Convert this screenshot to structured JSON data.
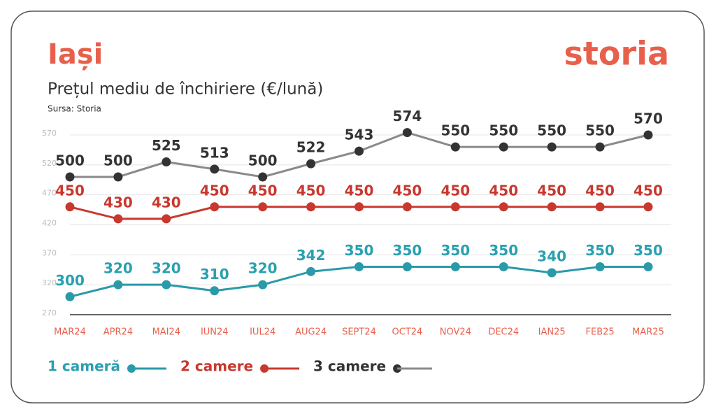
{
  "chart_data": {
    "type": "line",
    "title": "Iași",
    "subtitle": "Prețul mediu de închiriere (€/lună)",
    "source": "Sursa: Storia",
    "logo": "storia",
    "categories": [
      "MAR24",
      "APR24",
      "MAI24",
      "IUN24",
      "IUL24",
      "AUG24",
      "SEPT24",
      "OCT24",
      "NOV24",
      "DEC24",
      "IAN25",
      "FEB25",
      "MAR25"
    ],
    "ylim": [
      270,
      570
    ],
    "yticks": [
      270,
      320,
      370,
      420,
      470,
      520,
      570
    ],
    "grid": true,
    "series": [
      {
        "name": "1 cameră",
        "color": "#2a9aa8",
        "values": [
          300,
          320,
          320,
          310,
          320,
          342,
          350,
          350,
          350,
          350,
          340,
          350,
          350
        ]
      },
      {
        "name": "2 camere",
        "color": "#c8382f",
        "values": [
          450,
          430,
          430,
          450,
          450,
          450,
          450,
          450,
          450,
          450,
          450,
          450,
          450
        ]
      },
      {
        "name": "3 camere",
        "color": "#8a8a8a",
        "values": [
          500,
          500,
          525,
          513,
          500,
          522,
          543,
          574,
          550,
          550,
          550,
          550,
          570
        ]
      }
    ]
  }
}
